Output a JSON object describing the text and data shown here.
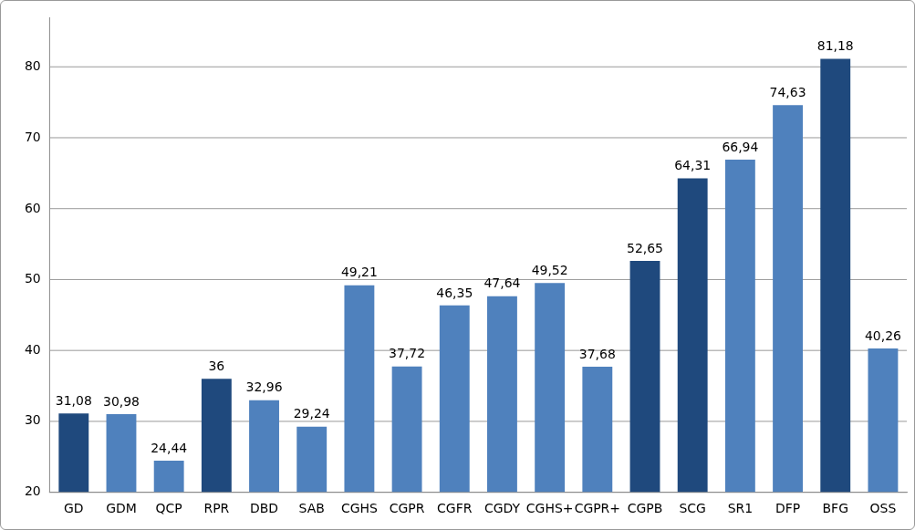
{
  "chart_data": {
    "type": "bar",
    "categories": [
      "GD",
      "GDM",
      "QCP",
      "RPR",
      "DBD",
      "SAB",
      "CGHS",
      "CGPR",
      "CGFR",
      "CGDY",
      "CGHS+",
      "CGPR+",
      "CGPB",
      "SCG",
      "SR1",
      "DFP",
      "BFG",
      "OSS"
    ],
    "values": [
      31.08,
      30.98,
      24.44,
      36,
      32.96,
      29.24,
      49.21,
      37.72,
      46.35,
      47.64,
      49.52,
      37.68,
      52.65,
      64.31,
      66.94,
      74.63,
      81.18,
      40.26
    ],
    "value_labels": [
      "31,08",
      "30,98",
      "24,44",
      "36",
      "32,96",
      "29,24",
      "49,21",
      "37,72",
      "46,35",
      "47,64",
      "49,52",
      "37,68",
      "52,65",
      "64,31",
      "66,94",
      "74,63",
      "81,18",
      "40,26"
    ],
    "colors": [
      "#1f497d",
      "#4f81bd",
      "#4f81bd",
      "#1f497d",
      "#4f81bd",
      "#4f81bd",
      "#4f81bd",
      "#4f81bd",
      "#4f81bd",
      "#4f81bd",
      "#4f81bd",
      "#4f81bd",
      "#1f497d",
      "#1f497d",
      "#4f81bd",
      "#4f81bd",
      "#1f497d",
      "#4f81bd"
    ],
    "ylim": [
      20,
      87
    ],
    "yticks": [
      20,
      30,
      40,
      50,
      60,
      70,
      80
    ],
    "grid": "y",
    "legend": false
  }
}
